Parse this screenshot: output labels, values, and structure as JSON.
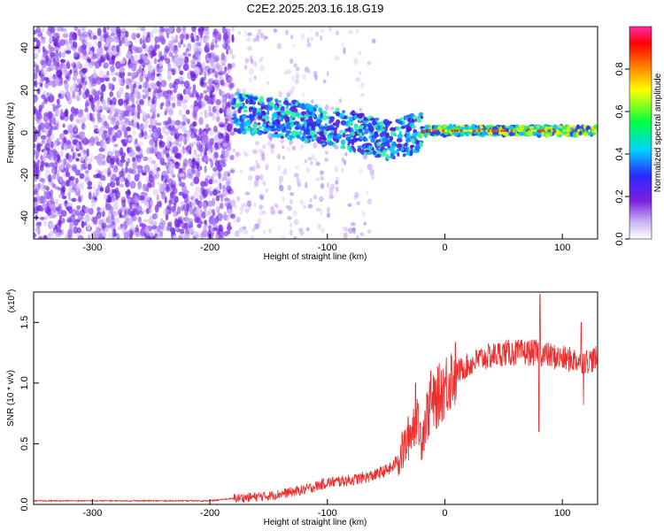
{
  "title": "C2E2.2025.203.16.18.G19",
  "chart_data": [
    {
      "type": "heatmap",
      "xlabel": "Height of straight line (km)",
      "ylabel": "Frequency (Hz)",
      "xlim": [
        -350,
        130
      ],
      "ylim": [
        -50,
        50
      ],
      "xticks": [
        -300,
        -200,
        -100,
        0,
        100
      ],
      "yticks": [
        -40,
        -20,
        0,
        20,
        40
      ],
      "grid": false,
      "colorbar": {
        "label": "Normalized spectral amplitude",
        "range": [
          0.0,
          1.0
        ],
        "ticks": [
          "0.0",
          "0.2",
          "0.4",
          "0.6",
          "0.8"
        ],
        "colormap": "white-purple-blue-cyan-green-yellow-red-magenta"
      },
      "ridge": [
        {
          "x": -180,
          "y": 10
        },
        {
          "x": -160,
          "y": 8
        },
        {
          "x": -140,
          "y": 7
        },
        {
          "x": -120,
          "y": 5
        },
        {
          "x": -100,
          "y": 3
        },
        {
          "x": -80,
          "y": 1
        },
        {
          "x": -60,
          "y": -2
        },
        {
          "x": -45,
          "y": -4
        },
        {
          "x": -30,
          "y": -1
        },
        {
          "x": -15,
          "y": 1
        },
        {
          "x": 0,
          "y": 1
        },
        {
          "x": 50,
          "y": 1
        },
        {
          "x": 100,
          "y": 1
        },
        {
          "x": 130,
          "y": 1
        }
      ],
      "noise_edge_x": -180
    },
    {
      "type": "line",
      "xlabel": "Height of straight line (km)",
      "ylabel": "SNR (10 * v/v)",
      "yscale_label": "(x10",
      "yscale_exp": "4",
      "xlim": [
        -350,
        130
      ],
      "ylim": [
        0,
        1.75
      ],
      "xticks": [
        -300,
        -200,
        -100,
        0,
        100
      ],
      "yticks": [
        "0.0",
        "0.5",
        "1.0",
        "1.5"
      ],
      "grid": false,
      "color": "#ee2c2c",
      "envelope": [
        {
          "x": -350,
          "y": 0.03
        },
        {
          "x": -250,
          "y": 0.03
        },
        {
          "x": -200,
          "y": 0.03
        },
        {
          "x": -180,
          "y": 0.05
        },
        {
          "x": -150,
          "y": 0.07
        },
        {
          "x": -120,
          "y": 0.12
        },
        {
          "x": -100,
          "y": 0.18
        },
        {
          "x": -80,
          "y": 0.2
        },
        {
          "x": -60,
          "y": 0.24
        },
        {
          "x": -45,
          "y": 0.3
        },
        {
          "x": -35,
          "y": 0.45
        },
        {
          "x": -25,
          "y": 0.7
        },
        {
          "x": -20,
          "y": 0.55
        },
        {
          "x": -15,
          "y": 0.75
        },
        {
          "x": -5,
          "y": 0.9
        },
        {
          "x": 5,
          "y": 1.05
        },
        {
          "x": 15,
          "y": 1.12
        },
        {
          "x": 30,
          "y": 1.2
        },
        {
          "x": 50,
          "y": 1.25
        },
        {
          "x": 80,
          "y": 1.25
        },
        {
          "x": 100,
          "y": 1.2
        },
        {
          "x": 120,
          "y": 1.18
        },
        {
          "x": 130,
          "y": 1.2
        }
      ],
      "spikes": [
        {
          "x": -25,
          "y": 1.0
        },
        {
          "x": -23,
          "y": 0.78
        },
        {
          "x": -12,
          "y": 1.1
        },
        {
          "x": 81,
          "y": 1.73
        },
        {
          "x": 80,
          "y": 0.6
        },
        {
          "x": 116,
          "y": 1.5
        },
        {
          "x": 118,
          "y": 0.82
        }
      ]
    }
  ]
}
